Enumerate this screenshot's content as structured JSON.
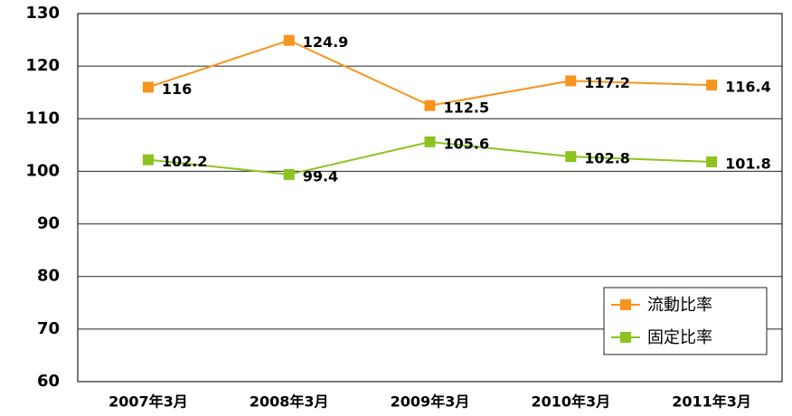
{
  "chart_data": {
    "type": "line",
    "categories": [
      "2007年3月",
      "2008年3月",
      "2009年3月",
      "2010年3月",
      "2011年3月"
    ],
    "series": [
      {
        "name": "流動比率",
        "color": "#f7941d",
        "values": [
          116,
          124.9,
          112.5,
          117.2,
          116.4
        ]
      },
      {
        "name": "固定比率",
        "color": "#8dc21f",
        "values": [
          102.2,
          99.4,
          105.6,
          102.8,
          101.8
        ]
      }
    ],
    "ylim": [
      60,
      130
    ],
    "yticks": [
      60,
      70,
      80,
      90,
      100,
      110,
      120,
      130
    ],
    "grid": true,
    "legend": "lower right"
  }
}
